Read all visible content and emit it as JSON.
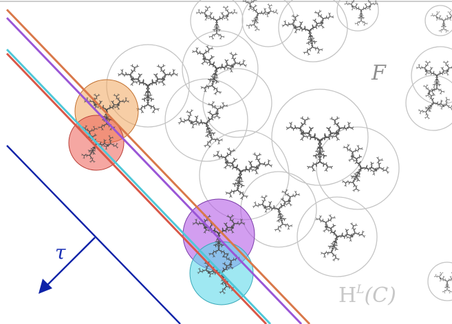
{
  "labels": {
    "fractal": "F",
    "direction": "τ",
    "hull_prefix": "H",
    "hull_superscript": "L",
    "hull_argument": "(C)"
  },
  "colors": {
    "fractal": "#555555",
    "cover_circle_stroke": "#c4c4c4",
    "direction_line": "#0e22a8",
    "orange": "#f0a65c",
    "red": "#ec5f55",
    "purple": "#b45ee6",
    "cyan": "#5fd8ea",
    "orange_line": "#d9784a",
    "red_line": "#d95848",
    "purple_line": "#9a56d6",
    "cyan_line": "#4fc8d8"
  },
  "icons": [
    "tau-arrow-icon"
  ]
}
